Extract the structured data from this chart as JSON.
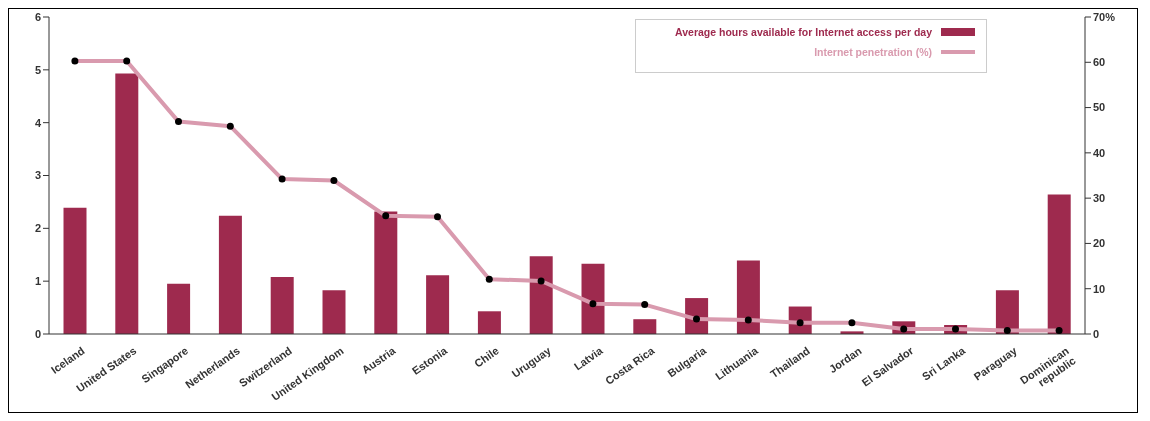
{
  "chart_data": {
    "type": "bar",
    "categories": [
      "Iceland",
      "United States",
      "Singapore",
      "Netherlands",
      "Switzerland",
      "United Kingdom",
      "Austria",
      "Estonia",
      "Chile",
      "Uruguay",
      "Latvia",
      "Costa Rica",
      "Bulgaria",
      "Lithuania",
      "Thailand",
      "Jordan",
      "El Salvador",
      "Sri Lanka",
      "Paraguay",
      "Dominican republic"
    ],
    "series": [
      {
        "name": "Average hours available for Internet access per day",
        "color": "#9e2a4e",
        "values": [
          2.39,
          4.93,
          0.95,
          2.24,
          1.08,
          0.83,
          2.32,
          1.11,
          0.43,
          1.47,
          1.33,
          0.28,
          0.68,
          1.39,
          0.52,
          0.05,
          0.24,
          0.17,
          0.83,
          2.64
        ]
      },
      {
        "name": "Internet penetration (%)",
        "type": "line",
        "axis": "y2",
        "color": "#d99aae",
        "marker": "circle",
        "values": [
          60.3,
          60.3,
          46.9,
          45.9,
          34.2,
          33.9,
          26.1,
          25.9,
          12.1,
          11.7,
          6.7,
          6.5,
          3.3,
          3.1,
          2.5,
          2.5,
          1.1,
          1.1,
          0.8,
          0.8
        ]
      }
    ],
    "ylim": [
      0,
      6
    ],
    "yticks": [
      0,
      1,
      2,
      3,
      4,
      5,
      6
    ],
    "y2lim": [
      0,
      70
    ],
    "y2ticks": [
      0,
      10,
      20,
      30,
      40,
      50,
      60,
      {
        "value": 70,
        "label": "70%"
      }
    ],
    "grid": false,
    "legend": "top right"
  }
}
